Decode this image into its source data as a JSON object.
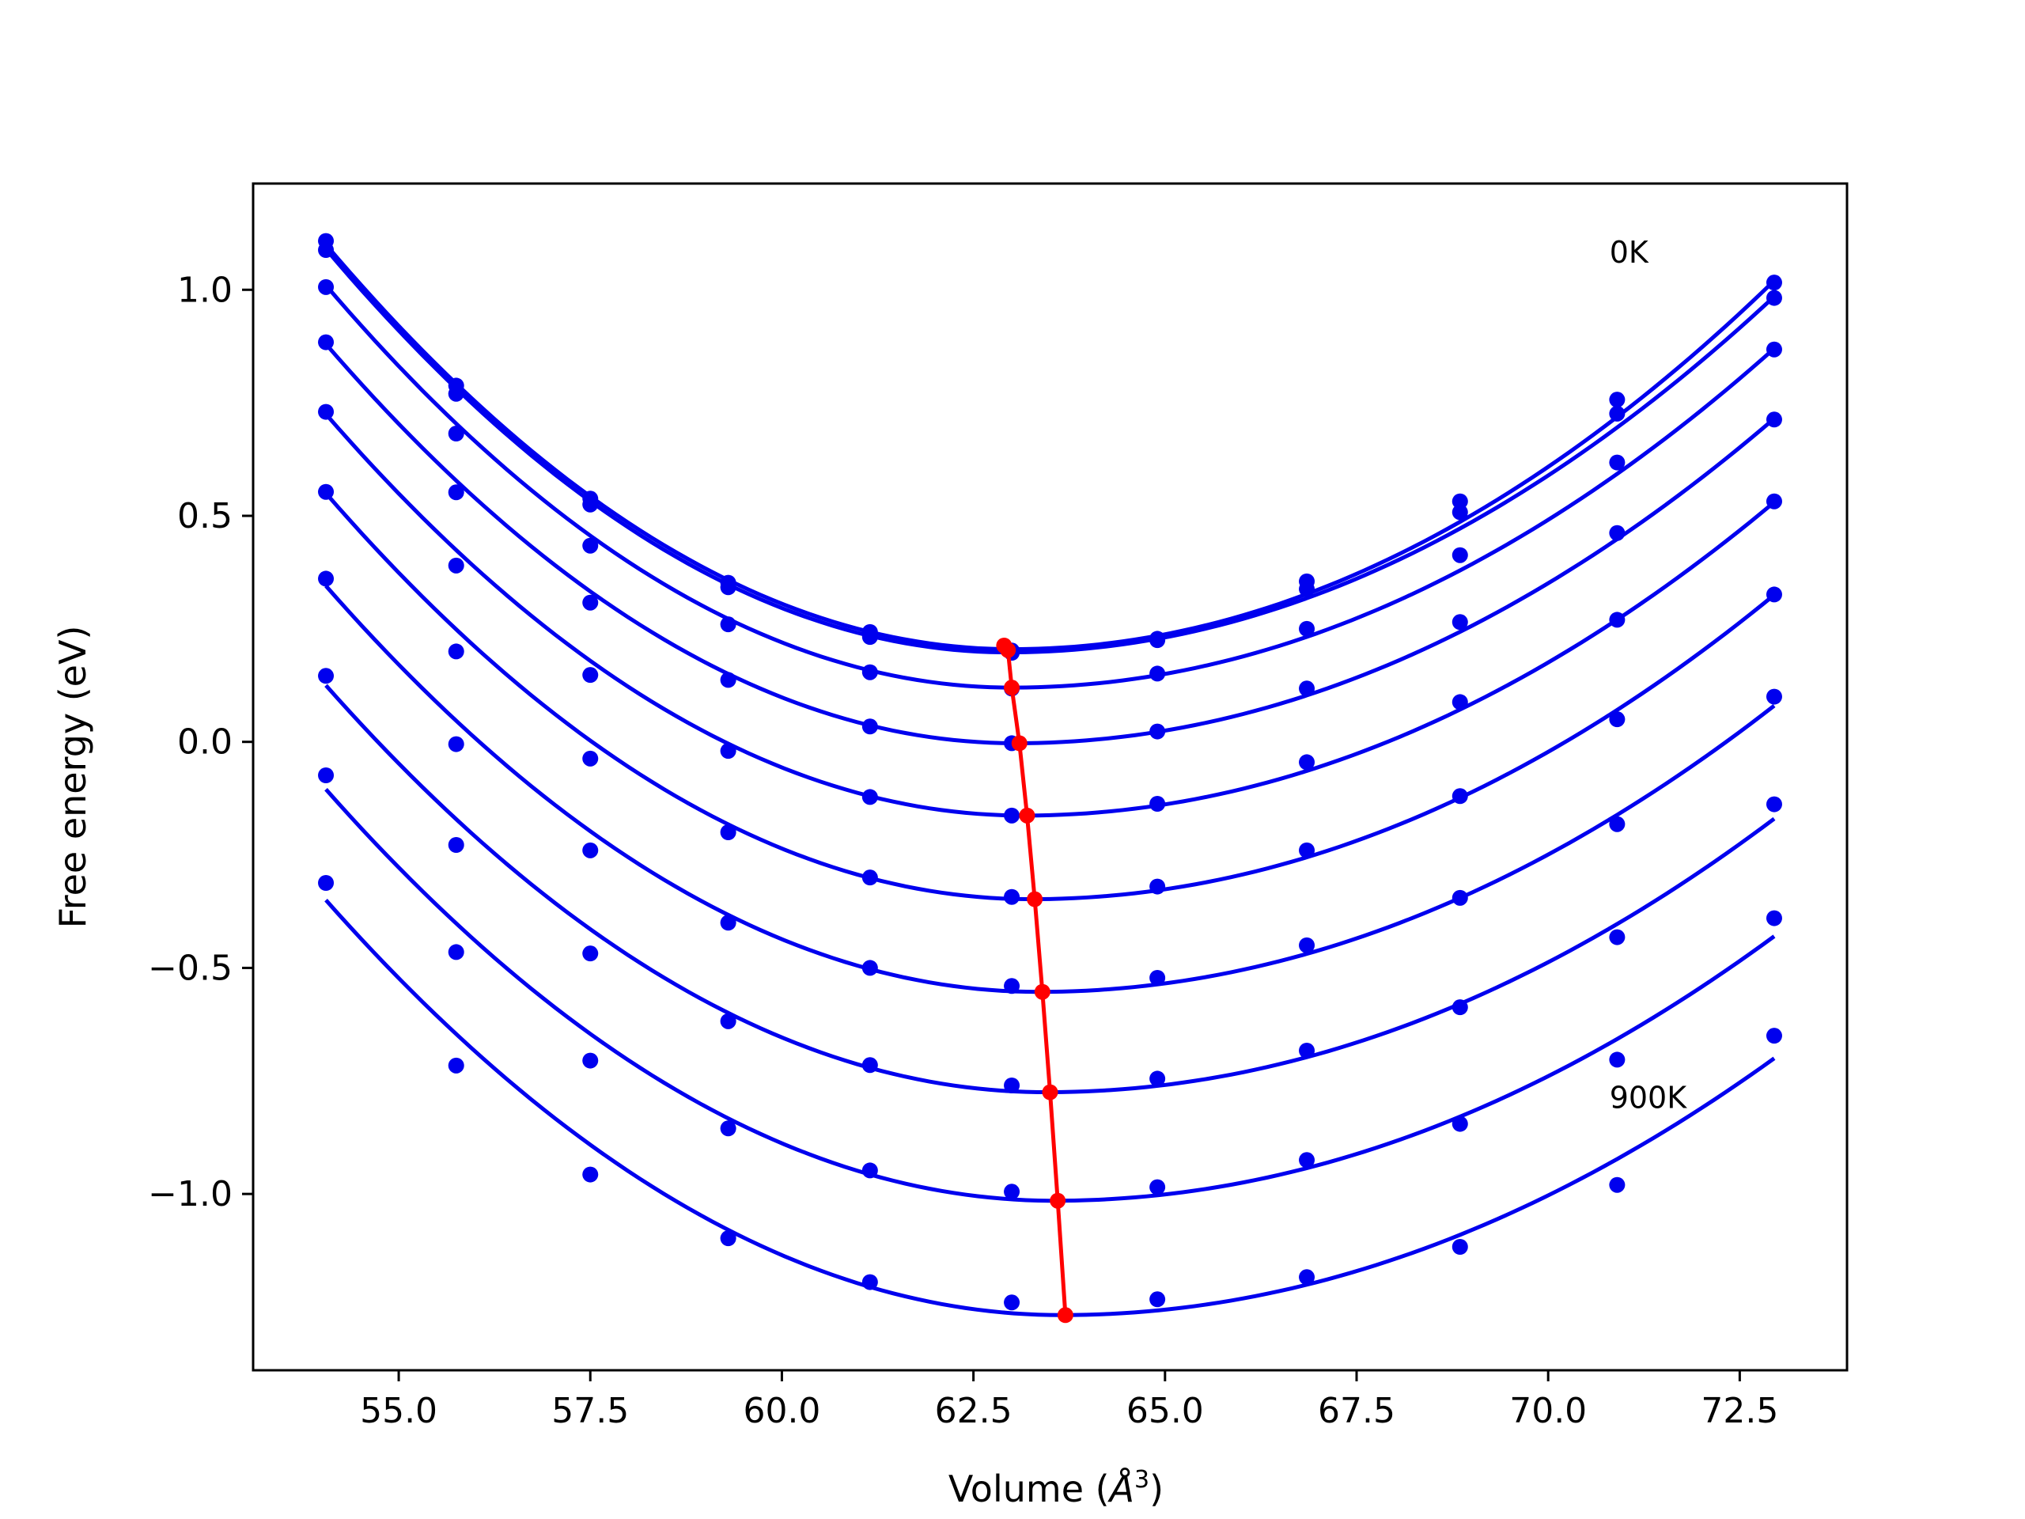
{
  "chart_data": {
    "type": "line",
    "xlabel": "Volume (",
    "xlabel_symbol": "Å",
    "xlabel_sup": "3",
    "xlabel_close": ")",
    "ylabel": "Free energy (eV)",
    "xlim": [
      53.1,
      73.9
    ],
    "ylim": [
      -1.39,
      1.235
    ],
    "xticks": [
      55.0,
      57.5,
      60.0,
      62.5,
      65.0,
      67.5,
      70.0,
      72.5
    ],
    "xtick_labels": [
      "55.0",
      "57.5",
      "60.0",
      "62.5",
      "65.0",
      "67.5",
      "70.0",
      "72.5"
    ],
    "yticks": [
      1.0,
      0.5,
      0.0,
      -0.5,
      -1.0
    ],
    "ytick_labels": [
      "1.0",
      "0.5",
      "0.0",
      "−0.5",
      "−1.0"
    ],
    "grid": false,
    "legend": "none",
    "annotations": [
      {
        "text": "0K",
        "x": 70.8,
        "y": 1.06
      },
      {
        "text": "900K",
        "x": 70.8,
        "y": -0.81
      }
    ],
    "x": [
      54.05,
      55.75,
      57.5,
      59.3,
      61.15,
      63.0,
      64.9,
      66.85,
      68.85,
      70.9,
      72.95
    ],
    "series": [
      {
        "color": "#0000ee",
        "points": [
          1.108,
          0.788,
          0.538,
          0.352,
          0.243,
          0.202,
          0.228,
          0.355,
          0.532,
          0.757,
          1.016
        ],
        "fit_vmin": 63.0,
        "fit_emin": 0.205,
        "fit_left": 1.1,
        "fit_right": 1.02
      },
      {
        "color": "#0000ee",
        "points": [
          1.088,
          0.77,
          0.525,
          0.342,
          0.232,
          0.197,
          0.225,
          0.338,
          0.508,
          0.726,
          0.982
        ],
        "fit_vmin": 62.95,
        "fit_emin": 0.198,
        "fit_left": 1.09,
        "fit_right": 0.985
      },
      {
        "color": "#0000ee",
        "points": [
          1.006,
          0.682,
          0.434,
          0.26,
          0.154,
          0.118,
          0.151,
          0.25,
          0.413,
          0.618,
          0.868
        ],
        "fit_vmin": 63.0,
        "fit_emin": 0.12,
        "fit_left": 1.01,
        "fit_right": 0.87
      },
      {
        "color": "#0000ee",
        "points": [
          0.884,
          0.552,
          0.308,
          0.137,
          0.034,
          -0.003,
          0.023,
          0.118,
          0.265,
          0.462,
          0.713
        ],
        "fit_vmin": 63.05,
        "fit_emin": -0.003,
        "fit_left": 0.88,
        "fit_right": 0.715
      },
      {
        "color": "#0000ee",
        "points": [
          0.73,
          0.39,
          0.148,
          -0.02,
          -0.122,
          -0.163,
          -0.137,
          -0.045,
          0.088,
          0.27,
          0.532
        ],
        "fit_vmin": 63.15,
        "fit_emin": -0.163,
        "fit_left": 0.725,
        "fit_right": 0.53
      },
      {
        "color": "#0000ee",
        "points": [
          0.553,
          0.2,
          -0.037,
          -0.2,
          -0.3,
          -0.343,
          -0.32,
          -0.24,
          -0.12,
          0.05,
          0.326
        ],
        "fit_vmin": 63.25,
        "fit_emin": -0.348,
        "fit_left": 0.55,
        "fit_right": 0.325
      },
      {
        "color": "#0000ee",
        "points": [
          0.361,
          -0.005,
          -0.24,
          -0.4,
          -0.5,
          -0.54,
          -0.522,
          -0.45,
          -0.345,
          -0.182,
          0.1
        ],
        "fit_vmin": 63.35,
        "fit_emin": -0.553,
        "fit_left": 0.345,
        "fit_right": 0.08
      },
      {
        "color": "#0000ee",
        "points": [
          0.146,
          -0.228,
          -0.468,
          -0.618,
          -0.715,
          -0.76,
          -0.745,
          -0.683,
          -0.587,
          -0.432,
          -0.138
        ],
        "fit_vmin": 63.45,
        "fit_emin": -0.775,
        "fit_left": 0.125,
        "fit_right": -0.17
      },
      {
        "color": "#0000ee",
        "points": [
          -0.074,
          -0.465,
          -0.705,
          -0.855,
          -0.948,
          -0.995,
          -0.985,
          -0.925,
          -0.845,
          -0.703,
          -0.39
        ],
        "fit_vmin": 63.55,
        "fit_emin": -1.015,
        "fit_left": -0.105,
        "fit_right": -0.43
      },
      {
        "color": "#0000ee",
        "points": [
          -0.312,
          -0.716,
          -0.957,
          -1.098,
          -1.195,
          -1.24,
          -1.233,
          -1.184,
          -1.117,
          -0.98,
          -0.65
        ],
        "fit_vmin": 63.65,
        "fit_emin": -1.268,
        "fit_left": -0.35,
        "fit_right": -0.7
      }
    ],
    "minima_line": {
      "color": "#ff0000",
      "x": [
        62.9,
        62.95,
        63.0,
        63.1,
        63.2,
        63.3,
        63.4,
        63.5,
        63.6,
        63.7
      ],
      "y": [
        0.213,
        0.203,
        0.12,
        -0.003,
        -0.163,
        -0.348,
        -0.553,
        -0.775,
        -1.015,
        -1.268
      ]
    }
  }
}
